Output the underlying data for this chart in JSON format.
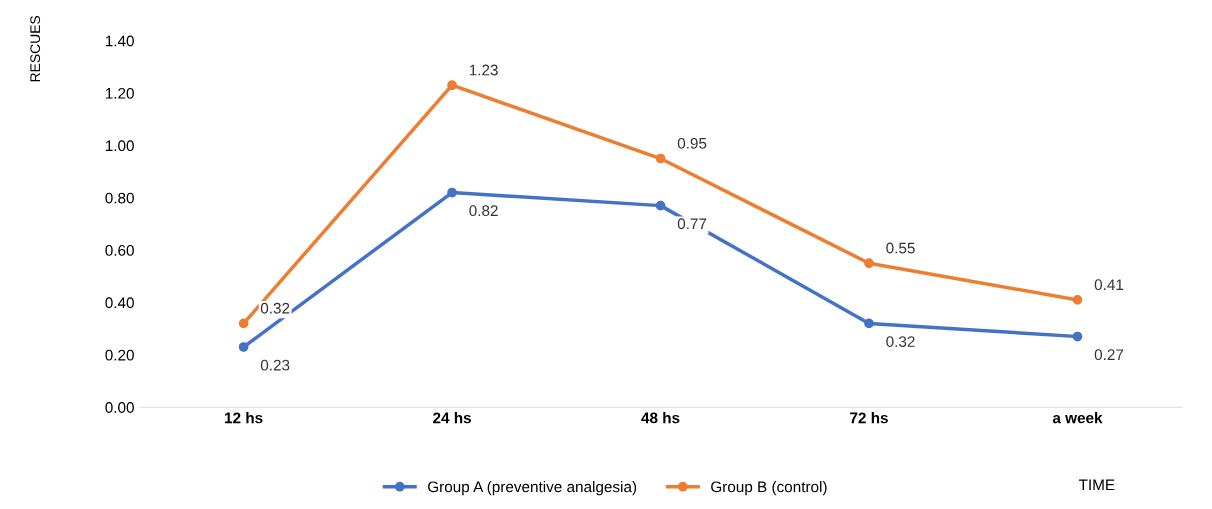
{
  "chart_data": {
    "type": "line",
    "ylabel": "RESCUES",
    "xlabel": "TIME",
    "categories": [
      "12 hs",
      "24 hs",
      "48 hs",
      "72 hs",
      "a week"
    ],
    "series": [
      {
        "name": "Group A (preventive analgesia)",
        "color": "#4472c4",
        "values": [
          0.23,
          0.82,
          0.77,
          0.32,
          0.27
        ]
      },
      {
        "name": "Group B (control)",
        "color": "#ed7d31",
        "values": [
          0.32,
          1.23,
          0.95,
          0.55,
          0.41
        ]
      }
    ],
    "ylim": [
      0,
      1.4
    ],
    "yticks": [
      {
        "value": 0,
        "label": "0.00"
      },
      {
        "value": 0.2,
        "label": "0.20"
      },
      {
        "value": 0.4,
        "label": "0.40"
      },
      {
        "value": 0.6,
        "label": "0.60"
      },
      {
        "value": 0.8,
        "label": "0.80"
      },
      {
        "value": 1.0,
        "label": "1.00"
      },
      {
        "value": 1.2,
        "label": "1.20"
      },
      {
        "value": 1.4,
        "label": "1.40"
      }
    ],
    "data_labels": true,
    "legend": "bottom",
    "marker": "circle",
    "line_style": "solid",
    "grid": false
  }
}
